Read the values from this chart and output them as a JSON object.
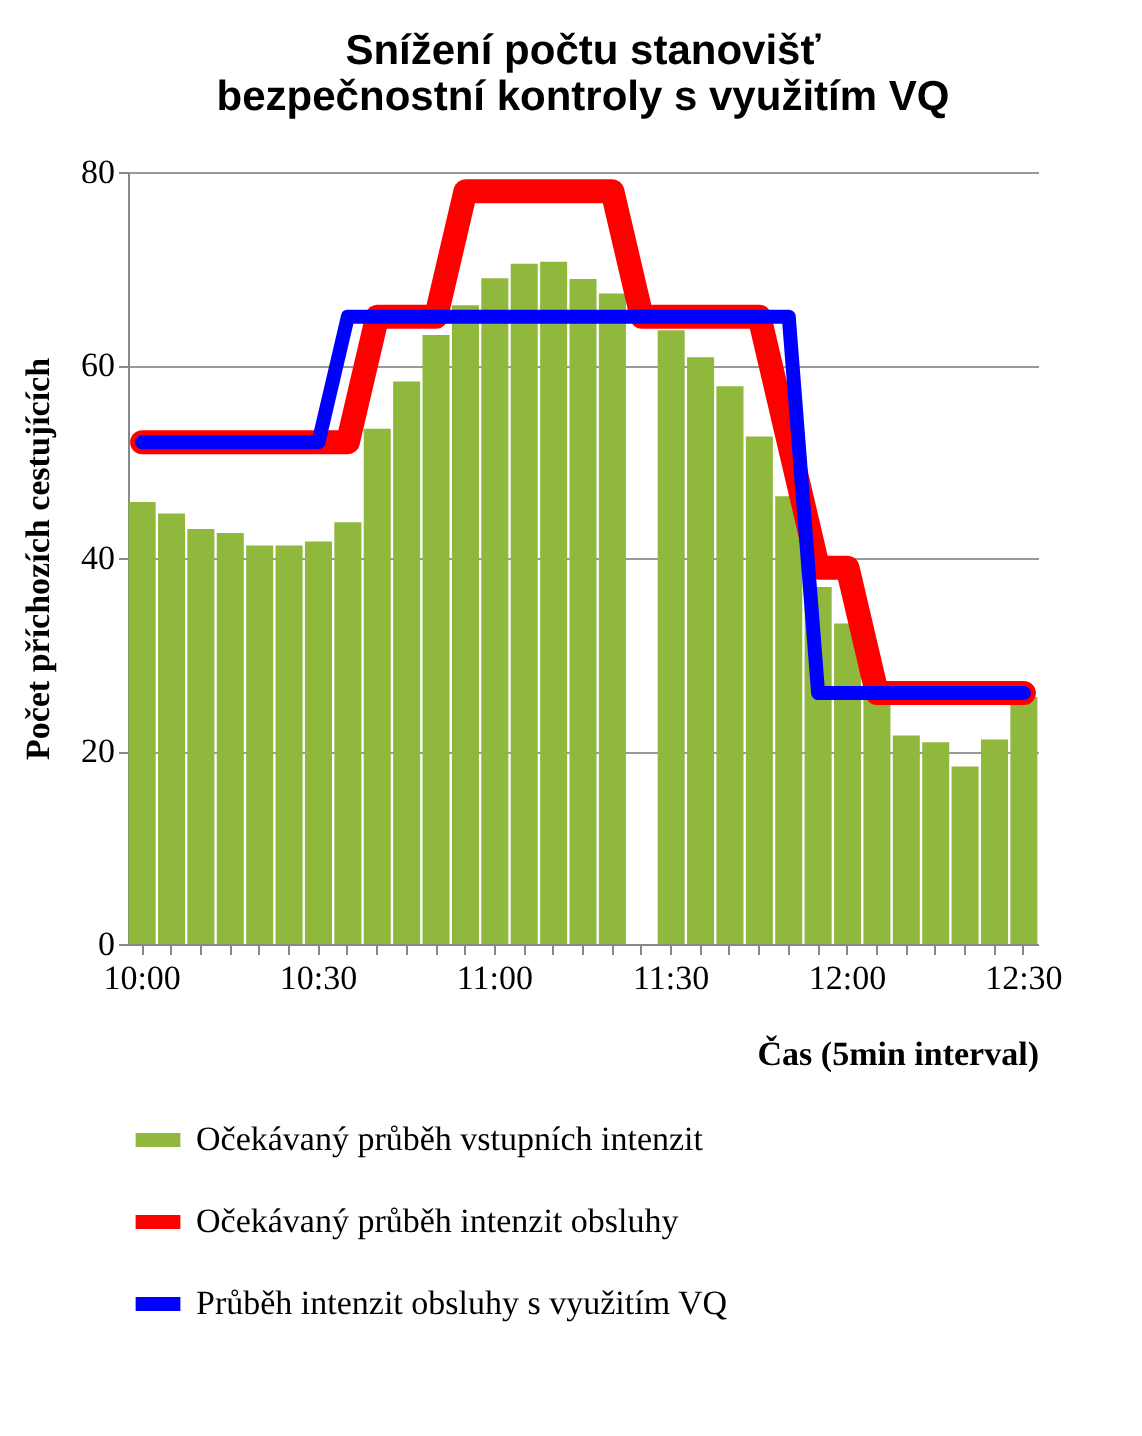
{
  "chart_data": {
    "type": "bar",
    "title": "Snížení  počtu stanovišť\nbezpečnostní kontroly s využitím VQ",
    "xlabel": "Čas (5min interval)",
    "ylabel": "Počet příchozích cestujících",
    "categories": [
      "10:00",
      null,
      null,
      null,
      null,
      null,
      "10:30",
      null,
      null,
      null,
      null,
      null,
      "11:00",
      null,
      null,
      null,
      null,
      null,
      "11:30",
      null,
      null,
      null,
      null,
      null,
      "12:00",
      null,
      null,
      null,
      null,
      null,
      "12:30"
    ],
    "series": [
      {
        "name": "Očekávaný průběh vstupních intenzit",
        "color": "#8fb83c",
        "values": [
          45.8,
          44.6,
          43.0,
          42.6,
          41.3,
          41.3,
          41.7,
          43.7,
          53.4,
          58.3,
          63.1,
          66.2,
          69.0,
          70.5,
          70.7,
          68.9,
          67.4,
          null,
          63.6,
          60.8,
          57.8,
          52.6,
          46.4,
          37.0,
          33.2,
          26.0,
          21.6,
          20.9,
          18.4,
          21.2,
          25.6
        ]
      },
      {
        "name": "Očekávaný průběh intenzit obsluhy",
        "type": "line",
        "color": "#ff0000",
        "values": [
          52,
          52,
          52,
          52,
          52,
          52,
          52,
          52,
          65,
          65,
          65,
          78,
          78,
          78,
          78,
          78,
          78,
          65,
          65,
          65,
          65,
          65,
          52,
          39,
          39,
          26,
          26,
          26,
          26,
          26,
          26
        ]
      },
      {
        "name": "Průběh intenzit obsluhy s využitím VQ",
        "type": "line",
        "color": "#0000ff",
        "values": [
          52,
          52,
          52,
          52,
          52,
          52,
          52,
          65,
          65,
          65,
          65,
          65,
          65,
          65,
          65,
          65,
          65,
          65,
          65,
          65,
          65,
          65,
          65,
          26,
          26,
          26,
          26,
          26,
          26,
          26,
          26
        ]
      }
    ],
    "ylim": [
      0,
      80
    ],
    "yticks": [
      0,
      20,
      40,
      60,
      80
    ],
    "grid": "y",
    "legend": "bottom"
  }
}
